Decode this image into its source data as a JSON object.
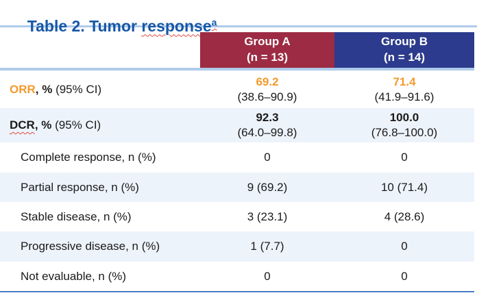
{
  "title": {
    "lead": "Table 2. Tumor ",
    "misspelled": "response",
    "superscript": "a"
  },
  "table": {
    "columns": [
      {
        "name": "Group A",
        "n": "(n = 13)"
      },
      {
        "name": "Group B",
        "n": "(n = 14)"
      }
    ],
    "rows": [
      {
        "label_em": "ORR",
        "label_bold": ", %",
        "label_rest": " (95% CI)",
        "groupA": {
          "value": "69.2",
          "ci": "(38.6–90.9)"
        },
        "groupB": {
          "value": "71.4",
          "ci": "(41.9–91.6)"
        }
      },
      {
        "label_em": "DCR",
        "label_bold": ", %",
        "label_rest": " (95% CI)",
        "groupA": {
          "value": "92.3",
          "ci": "(64.0–99.8)"
        },
        "groupB": {
          "value": "100.0",
          "ci": "(76.8–100.0)"
        }
      },
      {
        "label": "Complete response, n (%)",
        "groupA": "0",
        "groupB": "0"
      },
      {
        "label": "Partial response, n (%)",
        "groupA": "9 (69.2)",
        "groupB": "10 (71.4)"
      },
      {
        "label": "Stable disease, n (%)",
        "groupA": "3 (23.1)",
        "groupB": "4 (28.6)"
      },
      {
        "label": "Progressive disease, n (%)",
        "groupA": "1 (7.7)",
        "groupB": "0"
      },
      {
        "label": "Not evaluable, n (%)",
        "groupA": "0",
        "groupB": "0"
      }
    ]
  },
  "colors": {
    "title_blue": "#1757A6",
    "group_a_header": "#9C2B43",
    "group_b_header": "#2C3B8D",
    "row_alternate": "#EDF3FA",
    "accent_orange": "#F39A2D",
    "rule_light_blue": "#AECBEA",
    "rule_bottom_blue": "#4A7BC8",
    "spellcheck_red": "#E0483E"
  }
}
